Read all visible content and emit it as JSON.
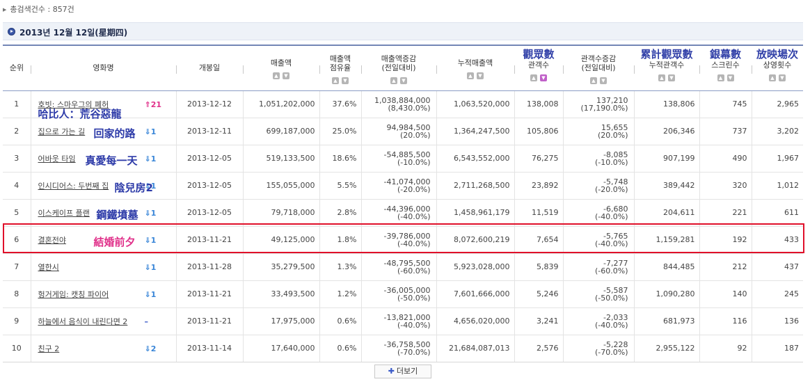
{
  "summary": {
    "label": "총검색건수 : 857건"
  },
  "date_bar": {
    "text": "2013년 12월 12일(星期四)"
  },
  "columns": [
    {
      "label": "순위",
      "sortable": false
    },
    {
      "label": "영화명",
      "sortable": false
    },
    {
      "label": "개봉일",
      "sortable": false
    },
    {
      "label": "매출액",
      "sortable": true
    },
    {
      "label1": "매출액",
      "label2": "점유율",
      "sortable": true
    },
    {
      "label1": "매출액증감",
      "label2": "(전일대비)",
      "sortable": true
    },
    {
      "label": "누적매출액",
      "sortable": true
    },
    {
      "cjk": "觀眾數",
      "label": "관객수",
      "sortable": true,
      "active_down": true
    },
    {
      "label1": "관객수증감",
      "label2": "(전일대비)",
      "sortable": true
    },
    {
      "cjk": "累計觀眾數",
      "label": "누적관객수",
      "sortable": true
    },
    {
      "cjk": "銀幕數",
      "label": "스크린수",
      "sortable": true
    },
    {
      "cjk": "放映場次",
      "label": "상영횟수",
      "sortable": true
    }
  ],
  "rows": [
    {
      "rank": "1",
      "title": "호빗: 스마우그의 폐허",
      "cn": "哈比人：荒谷惡龍",
      "trend": "21",
      "dir": "up",
      "open": "2013-12-12",
      "sales": "1,051,202,000",
      "share": "37.6%",
      "sales_chg": "1,038,884,000",
      "sales_chg_pct": "(8,430.0%)",
      "sales_cum": "1,063,520,000",
      "aud": "138,008",
      "aud_chg": "137,210",
      "aud_chg_pct": "(17,190.0%)",
      "aud_cum": "138,806",
      "screens": "745",
      "shows": "2,965"
    },
    {
      "rank": "2",
      "title": "집으로 가는 길",
      "cn": "回家的路",
      "trend": "1",
      "dir": "down",
      "open": "2013-12-11",
      "sales": "699,187,000",
      "share": "25.0%",
      "sales_chg": "94,984,500",
      "sales_chg_pct": "(20.0%)",
      "sales_cum": "1,364,247,500",
      "aud": "105,806",
      "aud_chg": "15,655",
      "aud_chg_pct": "(20.0%)",
      "aud_cum": "206,346",
      "screens": "737",
      "shows": "3,202"
    },
    {
      "rank": "3",
      "title": "어바웃 타임",
      "cn": "真愛每一天",
      "trend": "1",
      "dir": "down",
      "open": "2013-12-05",
      "sales": "519,133,500",
      "share": "18.6%",
      "sales_chg": "-54,885,500",
      "sales_chg_pct": "(-10.0%)",
      "sales_cum": "6,543,552,000",
      "aud": "76,275",
      "aud_chg": "-8,085",
      "aud_chg_pct": "(-10.0%)",
      "aud_cum": "907,199",
      "screens": "490",
      "shows": "1,967"
    },
    {
      "rank": "4",
      "title": "인시디어스: 두번째 집",
      "cn": "陰兒房2",
      "trend": "1",
      "dir": "down",
      "open": "2013-12-05",
      "sales": "155,055,000",
      "share": "5.5%",
      "sales_chg": "-41,074,000",
      "sales_chg_pct": "(-20.0%)",
      "sales_cum": "2,711,268,500",
      "aud": "23,892",
      "aud_chg": "-5,748",
      "aud_chg_pct": "(-20.0%)",
      "aud_cum": "389,442",
      "screens": "320",
      "shows": "1,012"
    },
    {
      "rank": "5",
      "title": "이스케이프 플랜",
      "cn": "鋼鐵墳墓",
      "trend": "1",
      "dir": "down",
      "open": "2013-12-05",
      "sales": "79,718,000",
      "share": "2.8%",
      "sales_chg": "-44,396,000",
      "sales_chg_pct": "(-40.0%)",
      "sales_cum": "1,458,961,179",
      "aud": "11,519",
      "aud_chg": "-6,680",
      "aud_chg_pct": "(-40.0%)",
      "aud_cum": "204,611",
      "screens": "221",
      "shows": "611"
    },
    {
      "rank": "6",
      "title": "결혼전야",
      "cn": "結婚前夕",
      "trend": "1",
      "dir": "down",
      "open": "2013-11-21",
      "sales": "49,125,000",
      "share": "1.8%",
      "sales_chg": "-39,786,000",
      "sales_chg_pct": "(-40.0%)",
      "sales_cum": "8,072,600,219",
      "aud": "7,654",
      "aud_chg": "-5,765",
      "aud_chg_pct": "(-40.0%)",
      "aud_cum": "1,159,281",
      "screens": "192",
      "shows": "433"
    },
    {
      "rank": "7",
      "title": "열한시",
      "cn": "",
      "trend": "1",
      "dir": "down",
      "open": "2013-11-28",
      "sales": "35,279,500",
      "share": "1.3%",
      "sales_chg": "-48,795,500",
      "sales_chg_pct": "(-60.0%)",
      "sales_cum": "5,923,028,000",
      "aud": "5,839",
      "aud_chg": "-7,277",
      "aud_chg_pct": "(-60.0%)",
      "aud_cum": "844,485",
      "screens": "212",
      "shows": "437"
    },
    {
      "rank": "8",
      "title": "헝거게임: 캣칭 파이어",
      "cn": "",
      "trend": "1",
      "dir": "down",
      "open": "2013-11-21",
      "sales": "33,493,500",
      "share": "1.2%",
      "sales_chg": "-36,005,000",
      "sales_chg_pct": "(-50.0%)",
      "sales_cum": "7,601,666,000",
      "aud": "5,246",
      "aud_chg": "-5,587",
      "aud_chg_pct": "(-50.0%)",
      "aud_cum": "1,090,280",
      "screens": "140",
      "shows": "245"
    },
    {
      "rank": "9",
      "title": "하늘에서 음식이 내린다면 2",
      "cn": "",
      "trend": "–",
      "dir": "same",
      "open": "2013-11-21",
      "sales": "17,975,000",
      "share": "0.6%",
      "sales_chg": "-13,821,000",
      "sales_chg_pct": "(-40.0%)",
      "sales_cum": "4,656,020,000",
      "aud": "3,241",
      "aud_chg": "-2,033",
      "aud_chg_pct": "(-40.0%)",
      "aud_cum": "681,973",
      "screens": "116",
      "shows": "136"
    },
    {
      "rank": "10",
      "title": "친구 2",
      "cn": "",
      "trend": "2",
      "dir": "down",
      "open": "2013-11-14",
      "sales": "17,640,000",
      "share": "0.6%",
      "sales_chg": "-36,758,500",
      "sales_chg_pct": "(-70.0%)",
      "sales_cum": "21,684,087,013",
      "aud": "2,576",
      "aud_chg": "-5,228",
      "aud_chg_pct": "(-70.0%)",
      "aud_cum": "2,955,122",
      "screens": "92",
      "shows": "187"
    }
  ],
  "highlight_row": 6,
  "more_button": {
    "label": "더보기"
  }
}
